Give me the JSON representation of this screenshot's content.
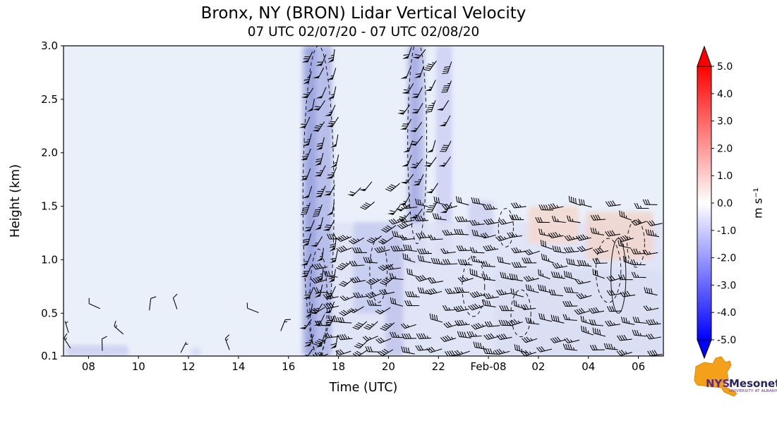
{
  "colors": {
    "plot_bg": "#e9f0fa",
    "barb": "#0a0a0a",
    "frame": "#000000",
    "cbar_max": "#ff0000",
    "cbar_mid": "#ffffff",
    "cbar_min": "#0000ff",
    "logo_orange": "#f5a01a",
    "logo_orange_edge": "#d98c00",
    "logo_purple": "#5b2a86",
    "logo_navy": "#26265e"
  },
  "header": {
    "title": "Bronx, NY (BRON) Lidar Vertical Velocity",
    "subtitle": "07 UTC 02/07/20 - 07 UTC 02/08/20"
  },
  "chart_data": {
    "type": "heatmap",
    "title": "Bronx, NY (BRON) Lidar Vertical Velocity",
    "subtitle": "07 UTC 02/07/20 - 07 UTC 02/08/20",
    "xlabel": "Time (UTC)",
    "ylabel": "Height (km)",
    "xlim_hours": [
      7,
      31
    ],
    "ylim": [
      0.1,
      3.0
    ],
    "x_ticks": [
      {
        "pos": 8,
        "label": "08"
      },
      {
        "pos": 10,
        "label": "10"
      },
      {
        "pos": 12,
        "label": "12"
      },
      {
        "pos": 14,
        "label": "14"
      },
      {
        "pos": 16,
        "label": "16"
      },
      {
        "pos": 18,
        "label": "18"
      },
      {
        "pos": 20,
        "label": "20"
      },
      {
        "pos": 22,
        "label": "22"
      },
      {
        "pos": 24,
        "label": "Feb-08"
      },
      {
        "pos": 26,
        "label": "02"
      },
      {
        "pos": 28,
        "label": "04"
      },
      {
        "pos": 30,
        "label": "06"
      }
    ],
    "y_ticks": [
      {
        "pos": 0.1,
        "label": "0.1"
      },
      {
        "pos": 0.5,
        "label": "0.5"
      },
      {
        "pos": 1.0,
        "label": "1.0"
      },
      {
        "pos": 1.5,
        "label": "1.5"
      },
      {
        "pos": 2.0,
        "label": "2.0"
      },
      {
        "pos": 2.5,
        "label": "2.5"
      },
      {
        "pos": 3.0,
        "label": "3.0"
      }
    ],
    "colorbar": {
      "label": "m s⁻¹",
      "ticks": [
        5.0,
        4.0,
        3.0,
        2.0,
        1.0,
        0.0,
        -1.0,
        -2.0,
        -3.0,
        -4.0,
        -5.0
      ],
      "vmin": -5.0,
      "vmax": 5.0,
      "colormap": "bwr (blue-white-red)",
      "extend": "both"
    },
    "overlays": [
      "wind barbs",
      "dashed vertical-velocity contours"
    ],
    "shading_regions": [
      {
        "t0": 16.55,
        "t1": 17.75,
        "z0": 0.1,
        "z1": 3.0,
        "color": "#b4bbe8",
        "op": 0.95
      },
      {
        "t0": 16.7,
        "t1": 17.1,
        "z0": 0.1,
        "z1": 3.0,
        "color": "#9aa3e0",
        "op": 0.8
      },
      {
        "t0": 20.75,
        "t1": 21.45,
        "z0": 0.95,
        "z1": 3.0,
        "color": "#b8bfe9",
        "op": 0.95
      },
      {
        "t0": 20.9,
        "t1": 21.2,
        "z0": 1.3,
        "z1": 3.0,
        "color": "#a6aee4",
        "op": 0.8
      },
      {
        "t0": 21.9,
        "t1": 22.55,
        "z0": 1.05,
        "z1": 3.0,
        "color": "#cdd3f2",
        "op": 0.9
      },
      {
        "t0": 17.8,
        "t1": 31.0,
        "z0": 0.1,
        "z1": 1.35,
        "color": "#dde2f6",
        "op": 0.85
      },
      {
        "t0": 18.6,
        "t1": 20.4,
        "z0": 0.5,
        "z1": 1.35,
        "color": "#c7cdef",
        "op": 0.9
      },
      {
        "t0": 19.9,
        "t1": 20.6,
        "z0": 0.1,
        "z1": 1.2,
        "color": "#c2c8ec",
        "op": 0.9
      },
      {
        "t0": 23.2,
        "t1": 24.2,
        "z0": 1.2,
        "z1": 1.55,
        "color": "#ccd2f0",
        "op": 0.85
      },
      {
        "t0": 24.3,
        "t1": 31.0,
        "z0": 0.1,
        "z1": 0.9,
        "color": "#d8ddf4",
        "op": 0.8
      },
      {
        "t0": 25.6,
        "t1": 27.6,
        "z0": 1.15,
        "z1": 1.5,
        "color": "#f3d9d2",
        "op": 0.9
      },
      {
        "t0": 27.9,
        "t1": 30.6,
        "z0": 1.0,
        "z1": 1.45,
        "color": "#f1d6cf",
        "op": 0.9
      },
      {
        "t0": 7.1,
        "t1": 9.6,
        "z0": 0.1,
        "z1": 0.2,
        "color": "#ccd2f0",
        "op": 0.9
      },
      {
        "t0": 12.1,
        "t1": 12.5,
        "z0": 0.1,
        "z1": 0.18,
        "color": "#d5daf3",
        "op": 0.9
      }
    ],
    "barb_regions": [
      {
        "t0": 16.95,
        "t1": 17.95,
        "z0": 0.15,
        "z1": 3.0,
        "dt": 0.48,
        "dz": 0.155,
        "dir": 200,
        "dirJit": 15,
        "spdMin": 45,
        "spdMax": 75,
        "skip": 0.05
      },
      {
        "t0": 20.9,
        "t1": 21.55,
        "z0": 1.45,
        "z1": 3.0,
        "dt": 0.5,
        "dz": 0.17,
        "dir": 210,
        "dirJit": 12,
        "spdMin": 50,
        "spdMax": 70,
        "skip": 0.1
      },
      {
        "t0": 21.95,
        "t1": 22.5,
        "z0": 1.55,
        "z1": 3.0,
        "dt": 0.5,
        "dz": 0.19,
        "dir": 205,
        "dirJit": 12,
        "spdMin": 40,
        "spdMax": 60,
        "skip": 0.15
      },
      {
        "t0": 17.55,
        "t1": 20.6,
        "z0": 0.14,
        "z1": 1.3,
        "dt": 0.52,
        "dz": 0.135,
        "dir": 250,
        "dirJit": 25,
        "spdMin": 25,
        "spdMax": 45,
        "skip": 0.12
      },
      {
        "t0": 20.6,
        "t1": 31.0,
        "z0": 0.14,
        "z1": 1.5,
        "dt": 0.54,
        "dz": 0.135,
        "dir": 270,
        "dirJit": 20,
        "spdMin": 25,
        "spdMax": 45,
        "skip": 0.15
      },
      {
        "t0": 18.9,
        "t1": 20.9,
        "z0": 1.35,
        "z1": 1.8,
        "dt": 0.5,
        "dz": 0.18,
        "dir": 230,
        "dirJit": 15,
        "spdMin": 40,
        "spdMax": 60,
        "skip": 0.3
      },
      {
        "t0": 7.3,
        "t1": 16.4,
        "z0": 0.14,
        "z1": 0.55,
        "dt": 1.05,
        "dz": 0.19,
        "dir": 330,
        "dirJit": 70,
        "spdMin": 5,
        "spdMax": 15,
        "skip": 0.55
      }
    ],
    "contours": [
      {
        "t": 17.2,
        "z": 1.55,
        "rt": 0.62,
        "rz": 1.45,
        "dashed": true
      },
      {
        "t": 17.2,
        "z": 0.6,
        "rt": 0.35,
        "rz": 0.5,
        "dashed": true
      },
      {
        "t": 21.15,
        "z": 2.1,
        "rt": 0.38,
        "rz": 0.95,
        "dashed": true
      },
      {
        "t": 19.6,
        "z": 0.9,
        "rt": 0.35,
        "rz": 0.3,
        "dashed": true
      },
      {
        "t": 23.4,
        "z": 0.75,
        "rt": 0.45,
        "rz": 0.28,
        "dashed": true
      },
      {
        "t": 25.3,
        "z": 0.5,
        "rt": 0.4,
        "rz": 0.22,
        "dashed": true
      },
      {
        "t": 28.8,
        "z": 0.9,
        "rt": 0.5,
        "rz": 0.3,
        "dashed": true
      },
      {
        "t": 29.9,
        "z": 1.15,
        "rt": 0.35,
        "rz": 0.22,
        "dashed": true
      },
      {
        "t": 24.7,
        "z": 1.3,
        "rt": 0.3,
        "rz": 0.18,
        "dashed": true
      },
      {
        "t": 29.2,
        "z": 0.85,
        "rt": 0.3,
        "rz": 0.35,
        "dashed": false
      }
    ]
  },
  "branding": {
    "org_short": "NYS",
    "org_name": "Mesonet",
    "tagline": "UNIVERSITY AT ALBANY"
  }
}
